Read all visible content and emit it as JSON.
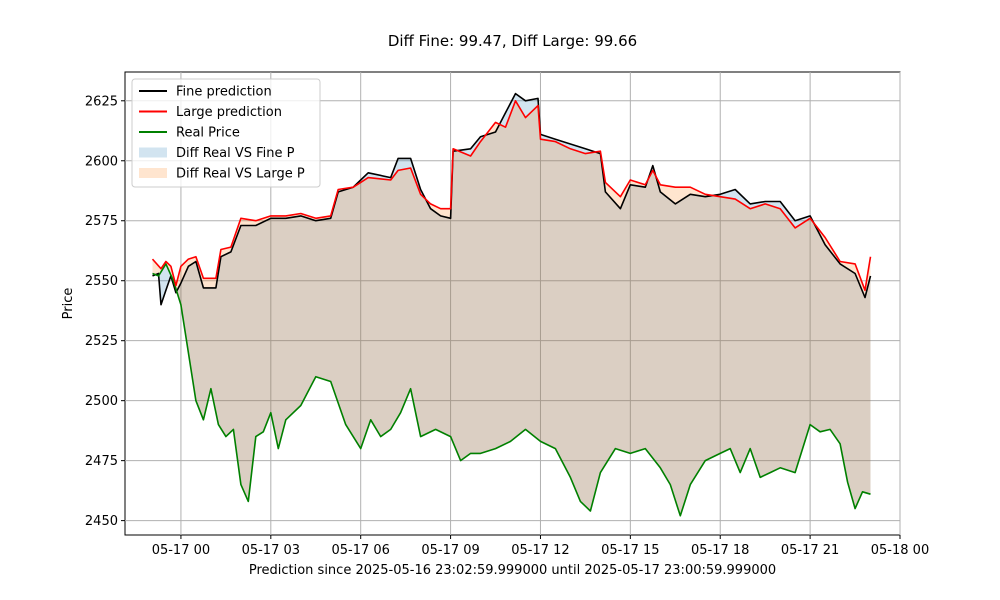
{
  "chart_data": {
    "type": "line",
    "title": "Diff Fine: 99.47, Diff Large: 99.66",
    "xlabel": "Prediction since 2025-05-16 23:02:59.999000 until 2025-05-17 23:00:59.999000",
    "ylabel": "Price",
    "xlim": [
      "2025-05-16 22:08",
      "2025-05-18 00:00"
    ],
    "ylim": [
      2444,
      2637
    ],
    "x_ticks": [
      {
        "t": "2025-05-17 00:00",
        "label": "05-17 00"
      },
      {
        "t": "2025-05-17 03:00",
        "label": "05-17 03"
      },
      {
        "t": "2025-05-17 06:00",
        "label": "05-17 06"
      },
      {
        "t": "2025-05-17 09:00",
        "label": "05-17 09"
      },
      {
        "t": "2025-05-17 12:00",
        "label": "05-17 12"
      },
      {
        "t": "2025-05-17 15:00",
        "label": "05-17 15"
      },
      {
        "t": "2025-05-17 18:00",
        "label": "05-17 18"
      },
      {
        "t": "2025-05-17 21:00",
        "label": "05-17 21"
      },
      {
        "t": "2025-05-18 00:00",
        "label": "05-18 00"
      }
    ],
    "y_ticks": [
      2450,
      2475,
      2500,
      2525,
      2550,
      2575,
      2600,
      2625
    ],
    "grid": true,
    "legend_position": "top-left",
    "legend": [
      {
        "label": "Fine prediction",
        "kind": "line",
        "color": "#000000"
      },
      {
        "label": "Large prediction",
        "kind": "line",
        "color": "#ff0000"
      },
      {
        "label": "Real Price",
        "kind": "line",
        "color": "#008000"
      },
      {
        "label": "Diff Real VS Fine P",
        "kind": "area",
        "color": "#1f77b4"
      },
      {
        "label": "Diff Real VS Large P",
        "kind": "area",
        "color": "#ff7f0e"
      }
    ],
    "series": [
      {
        "name": "Fine prediction",
        "color": "#000000",
        "points": [
          [
            "2025-05-16 23:03",
            2552
          ],
          [
            "2025-05-16 23:15",
            2553
          ],
          [
            "2025-05-16 23:20",
            2540
          ],
          [
            "2025-05-16 23:30",
            2546
          ],
          [
            "2025-05-16 23:40",
            2552
          ],
          [
            "2025-05-16 23:50",
            2545
          ],
          [
            "2025-05-17 00:00",
            2549
          ],
          [
            "2025-05-17 00:15",
            2556
          ],
          [
            "2025-05-17 00:30",
            2558
          ],
          [
            "2025-05-17 00:45",
            2547
          ],
          [
            "2025-05-17 01:10",
            2547
          ],
          [
            "2025-05-17 01:20",
            2560
          ],
          [
            "2025-05-17 01:40",
            2562
          ],
          [
            "2025-05-17 02:00",
            2573
          ],
          [
            "2025-05-17 02:30",
            2573
          ],
          [
            "2025-05-17 03:00",
            2576
          ],
          [
            "2025-05-17 03:30",
            2576
          ],
          [
            "2025-05-17 04:00",
            2577
          ],
          [
            "2025-05-17 04:30",
            2575
          ],
          [
            "2025-05-17 05:00",
            2576
          ],
          [
            "2025-05-17 05:15",
            2587
          ],
          [
            "2025-05-17 05:45",
            2589
          ],
          [
            "2025-05-17 06:00",
            2592
          ],
          [
            "2025-05-17 06:15",
            2595
          ],
          [
            "2025-05-17 07:00",
            2593
          ],
          [
            "2025-05-17 07:15",
            2601
          ],
          [
            "2025-05-17 07:40",
            2601
          ],
          [
            "2025-05-17 08:00",
            2588
          ],
          [
            "2025-05-17 08:20",
            2580
          ],
          [
            "2025-05-17 08:40",
            2577
          ],
          [
            "2025-05-17 09:00",
            2576
          ],
          [
            "2025-05-17 09:05",
            2604
          ],
          [
            "2025-05-17 09:40",
            2605
          ],
          [
            "2025-05-17 10:00",
            2610
          ],
          [
            "2025-05-17 10:30",
            2612
          ],
          [
            "2025-05-17 10:50",
            2620
          ],
          [
            "2025-05-17 11:10",
            2628
          ],
          [
            "2025-05-17 11:30",
            2625
          ],
          [
            "2025-05-17 11:55",
            2626
          ],
          [
            "2025-05-17 12:00",
            2611
          ],
          [
            "2025-05-17 12:30",
            2609
          ],
          [
            "2025-05-17 13:00",
            2607
          ],
          [
            "2025-05-17 13:30",
            2605
          ],
          [
            "2025-05-17 14:00",
            2603
          ],
          [
            "2025-05-17 14:10",
            2587
          ],
          [
            "2025-05-17 14:40",
            2580
          ],
          [
            "2025-05-17 15:00",
            2590
          ],
          [
            "2025-05-17 15:30",
            2589
          ],
          [
            "2025-05-17 15:45",
            2598
          ],
          [
            "2025-05-17 16:00",
            2587
          ],
          [
            "2025-05-17 16:30",
            2582
          ],
          [
            "2025-05-17 17:00",
            2586
          ],
          [
            "2025-05-17 17:30",
            2585
          ],
          [
            "2025-05-17 18:00",
            2586
          ],
          [
            "2025-05-17 18:30",
            2588
          ],
          [
            "2025-05-17 19:00",
            2582
          ],
          [
            "2025-05-17 19:30",
            2583
          ],
          [
            "2025-05-17 20:00",
            2583
          ],
          [
            "2025-05-17 20:30",
            2575
          ],
          [
            "2025-05-17 21:00",
            2577
          ],
          [
            "2025-05-17 21:30",
            2565
          ],
          [
            "2025-05-17 22:00",
            2557
          ],
          [
            "2025-05-17 22:30",
            2553
          ],
          [
            "2025-05-17 22:50",
            2543
          ],
          [
            "2025-05-17 23:01",
            2552
          ]
        ]
      },
      {
        "name": "Large prediction",
        "color": "#ff0000",
        "points": [
          [
            "2025-05-16 23:03",
            2559
          ],
          [
            "2025-05-16 23:20",
            2555
          ],
          [
            "2025-05-16 23:30",
            2558
          ],
          [
            "2025-05-16 23:40",
            2556
          ],
          [
            "2025-05-16 23:50",
            2548
          ],
          [
            "2025-05-17 00:00",
            2556
          ],
          [
            "2025-05-17 00:15",
            2559
          ],
          [
            "2025-05-17 00:30",
            2560
          ],
          [
            "2025-05-17 00:45",
            2551
          ],
          [
            "2025-05-17 01:10",
            2551
          ],
          [
            "2025-05-17 01:20",
            2563
          ],
          [
            "2025-05-17 01:40",
            2564
          ],
          [
            "2025-05-17 02:00",
            2576
          ],
          [
            "2025-05-17 02:30",
            2575
          ],
          [
            "2025-05-17 03:00",
            2577
          ],
          [
            "2025-05-17 03:30",
            2577
          ],
          [
            "2025-05-17 04:00",
            2578
          ],
          [
            "2025-05-17 04:30",
            2576
          ],
          [
            "2025-05-17 05:00",
            2577
          ],
          [
            "2025-05-17 05:15",
            2588
          ],
          [
            "2025-05-17 05:45",
            2589
          ],
          [
            "2025-05-17 06:00",
            2591
          ],
          [
            "2025-05-17 06:15",
            2593
          ],
          [
            "2025-05-17 07:00",
            2592
          ],
          [
            "2025-05-17 07:15",
            2596
          ],
          [
            "2025-05-17 07:40",
            2597
          ],
          [
            "2025-05-17 08:00",
            2586
          ],
          [
            "2025-05-17 08:20",
            2582
          ],
          [
            "2025-05-17 08:40",
            2580
          ],
          [
            "2025-05-17 09:00",
            2580
          ],
          [
            "2025-05-17 09:05",
            2605
          ],
          [
            "2025-05-17 09:40",
            2602
          ],
          [
            "2025-05-17 10:00",
            2608
          ],
          [
            "2025-05-17 10:30",
            2616
          ],
          [
            "2025-05-17 10:50",
            2614
          ],
          [
            "2025-05-17 11:10",
            2625
          ],
          [
            "2025-05-17 11:30",
            2618
          ],
          [
            "2025-05-17 11:55",
            2623
          ],
          [
            "2025-05-17 12:00",
            2609
          ],
          [
            "2025-05-17 12:30",
            2608
          ],
          [
            "2025-05-17 13:00",
            2605
          ],
          [
            "2025-05-17 13:30",
            2603
          ],
          [
            "2025-05-17 14:00",
            2604
          ],
          [
            "2025-05-17 14:10",
            2591
          ],
          [
            "2025-05-17 14:40",
            2585
          ],
          [
            "2025-05-17 15:00",
            2592
          ],
          [
            "2025-05-17 15:30",
            2590
          ],
          [
            "2025-05-17 15:45",
            2596
          ],
          [
            "2025-05-17 16:00",
            2590
          ],
          [
            "2025-05-17 16:30",
            2589
          ],
          [
            "2025-05-17 17:00",
            2589
          ],
          [
            "2025-05-17 17:30",
            2586
          ],
          [
            "2025-05-17 18:00",
            2585
          ],
          [
            "2025-05-17 18:30",
            2584
          ],
          [
            "2025-05-17 19:00",
            2580
          ],
          [
            "2025-05-17 19:30",
            2582
          ],
          [
            "2025-05-17 20:00",
            2580
          ],
          [
            "2025-05-17 20:30",
            2572
          ],
          [
            "2025-05-17 21:00",
            2576
          ],
          [
            "2025-05-17 21:30",
            2568
          ],
          [
            "2025-05-17 22:00",
            2558
          ],
          [
            "2025-05-17 22:30",
            2557
          ],
          [
            "2025-05-17 22:50",
            2546
          ],
          [
            "2025-05-17 23:01",
            2560
          ]
        ]
      },
      {
        "name": "Real Price",
        "color": "#008000",
        "points": [
          [
            "2025-05-16 23:03",
            2553
          ],
          [
            "2025-05-16 23:15",
            2552
          ],
          [
            "2025-05-16 23:30",
            2557
          ],
          [
            "2025-05-16 23:45",
            2550
          ],
          [
            "2025-05-17 00:00",
            2540
          ],
          [
            "2025-05-17 00:15",
            2520
          ],
          [
            "2025-05-17 00:30",
            2500
          ],
          [
            "2025-05-17 00:45",
            2492
          ],
          [
            "2025-05-17 01:00",
            2505
          ],
          [
            "2025-05-17 01:15",
            2490
          ],
          [
            "2025-05-17 01:30",
            2485
          ],
          [
            "2025-05-17 01:45",
            2488
          ],
          [
            "2025-05-17 02:00",
            2465
          ],
          [
            "2025-05-17 02:15",
            2458
          ],
          [
            "2025-05-17 02:30",
            2485
          ],
          [
            "2025-05-17 02:45",
            2487
          ],
          [
            "2025-05-17 03:00",
            2495
          ],
          [
            "2025-05-17 03:15",
            2480
          ],
          [
            "2025-05-17 03:30",
            2492
          ],
          [
            "2025-05-17 04:00",
            2498
          ],
          [
            "2025-05-17 04:30",
            2510
          ],
          [
            "2025-05-17 05:00",
            2508
          ],
          [
            "2025-05-17 05:30",
            2490
          ],
          [
            "2025-05-17 06:00",
            2480
          ],
          [
            "2025-05-17 06:20",
            2492
          ],
          [
            "2025-05-17 06:40",
            2485
          ],
          [
            "2025-05-17 07:00",
            2488
          ],
          [
            "2025-05-17 07:20",
            2495
          ],
          [
            "2025-05-17 07:40",
            2505
          ],
          [
            "2025-05-17 08:00",
            2485
          ],
          [
            "2025-05-17 08:30",
            2488
          ],
          [
            "2025-05-17 09:00",
            2485
          ],
          [
            "2025-05-17 09:20",
            2475
          ],
          [
            "2025-05-17 09:40",
            2478
          ],
          [
            "2025-05-17 10:00",
            2478
          ],
          [
            "2025-05-17 10:30",
            2480
          ],
          [
            "2025-05-17 11:00",
            2483
          ],
          [
            "2025-05-17 11:30",
            2488
          ],
          [
            "2025-05-17 12:00",
            2483
          ],
          [
            "2025-05-17 12:30",
            2480
          ],
          [
            "2025-05-17 13:00",
            2468
          ],
          [
            "2025-05-17 13:20",
            2458
          ],
          [
            "2025-05-17 13:40",
            2454
          ],
          [
            "2025-05-17 14:00",
            2470
          ],
          [
            "2025-05-17 14:30",
            2480
          ],
          [
            "2025-05-17 15:00",
            2478
          ],
          [
            "2025-05-17 15:30",
            2480
          ],
          [
            "2025-05-17 16:00",
            2472
          ],
          [
            "2025-05-17 16:20",
            2465
          ],
          [
            "2025-05-17 16:40",
            2452
          ],
          [
            "2025-05-17 17:00",
            2465
          ],
          [
            "2025-05-17 17:30",
            2475
          ],
          [
            "2025-05-17 18:00",
            2478
          ],
          [
            "2025-05-17 18:20",
            2480
          ],
          [
            "2025-05-17 18:40",
            2470
          ],
          [
            "2025-05-17 19:00",
            2480
          ],
          [
            "2025-05-17 19:20",
            2468
          ],
          [
            "2025-05-17 19:40",
            2470
          ],
          [
            "2025-05-17 20:00",
            2472
          ],
          [
            "2025-05-17 20:30",
            2470
          ],
          [
            "2025-05-17 21:00",
            2490
          ],
          [
            "2025-05-17 21:20",
            2487
          ],
          [
            "2025-05-17 21:40",
            2488
          ],
          [
            "2025-05-17 22:00",
            2482
          ],
          [
            "2025-05-17 22:15",
            2466
          ],
          [
            "2025-05-17 22:30",
            2455
          ],
          [
            "2025-05-17 22:45",
            2462
          ],
          [
            "2025-05-17 23:01",
            2461
          ]
        ]
      }
    ]
  }
}
